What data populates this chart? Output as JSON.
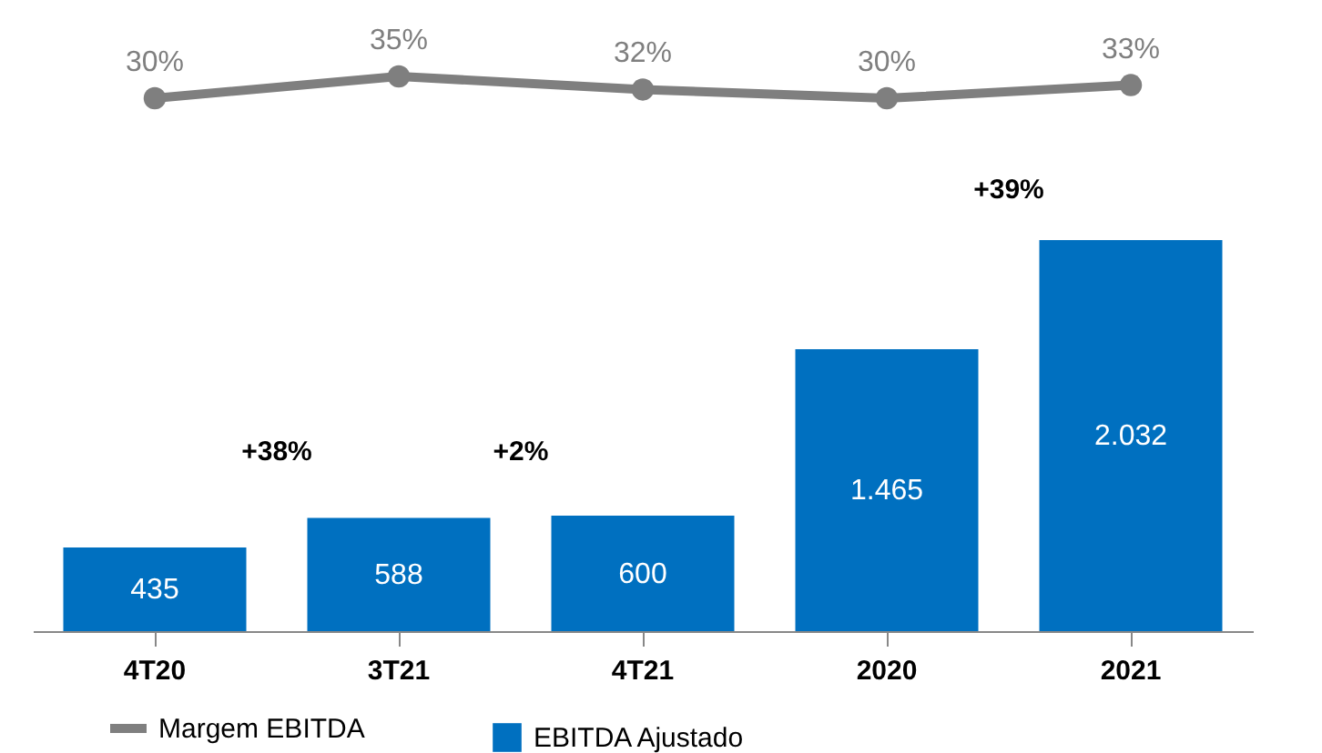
{
  "chart_data": [
    {
      "type": "line",
      "categories": [
        null,
        null,
        null,
        null,
        null
      ],
      "series": [
        {
          "name": "Margem EBITDA",
          "color": "#7f7f7f",
          "values": [
            30,
            35,
            32,
            30,
            33
          ],
          "value_labels": [
            "30%",
            "35%",
            "32%",
            "30%",
            "33%"
          ]
        }
      ],
      "tick_labels": false,
      "marker": "circle",
      "legend": "bottom"
    },
    {
      "type": "bar",
      "categories": [
        "4T20",
        "3T21",
        "4T21",
        "2020",
        "2021"
      ],
      "series": [
        {
          "name": "EBITDA Ajustado",
          "color": "#0070c0",
          "values": [
            435,
            588,
            600,
            1465,
            2032
          ],
          "value_labels": [
            "435",
            "588",
            "600",
            "1.465",
            "2.032"
          ]
        }
      ],
      "tick_labels": "x",
      "legend": "bottom",
      "annotations": [
        "+38%",
        "+2%",
        "+39%"
      ]
    }
  ]
}
